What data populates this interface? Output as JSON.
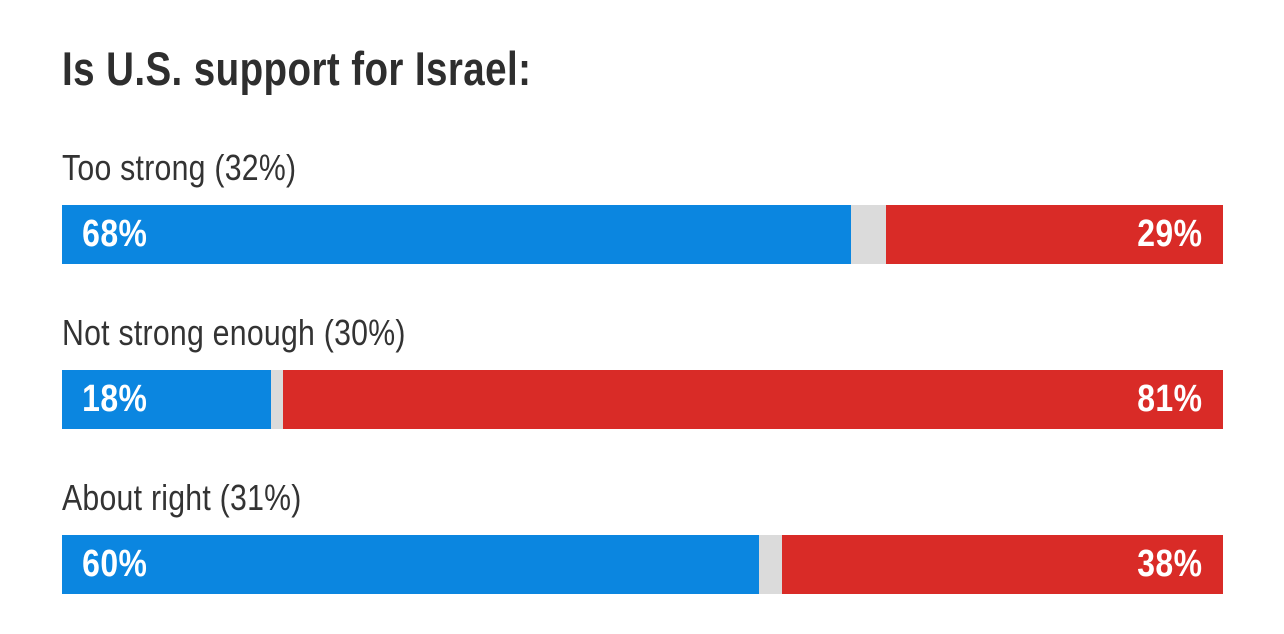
{
  "header": {
    "title": "Is U.S. support for Israel:"
  },
  "colors": {
    "blue": "#0b86e0",
    "red": "#d92b27",
    "gap": "#dbdbdb",
    "text": "#333333",
    "background": "#ffffff"
  },
  "rows": [
    {
      "label": "Too strong (32%)",
      "blue_value_label": "68%",
      "red_value_label": "29%",
      "blue_pct": 68,
      "red_pct": 29
    },
    {
      "label": "Not strong enough (30%)",
      "blue_value_label": "18%",
      "red_value_label": "81%",
      "blue_pct": 18,
      "red_pct": 81
    },
    {
      "label": "About right (31%)",
      "blue_value_label": "60%",
      "red_value_label": "38%",
      "blue_pct": 60,
      "red_pct": 38
    }
  ],
  "chart_data": {
    "type": "bar",
    "orientation": "horizontal-stacked",
    "title": "Is U.S. support for Israel:",
    "categories": [
      "Too strong (32%)",
      "Not strong enough (30%)",
      "About right (31%)"
    ],
    "series": [
      {
        "name": "blue-segment",
        "color": "#0b86e0",
        "values": [
          68,
          18,
          60
        ]
      },
      {
        "name": "red-segment",
        "color": "#d92b27",
        "values": [
          29,
          81,
          38
        ]
      }
    ],
    "remainder_gap_color": "#dbdbdb",
    "xlim": [
      0,
      100
    ],
    "value_labels": "inside-bar-ends",
    "legend": "none",
    "grid": false,
    "axes_visible": false
  }
}
